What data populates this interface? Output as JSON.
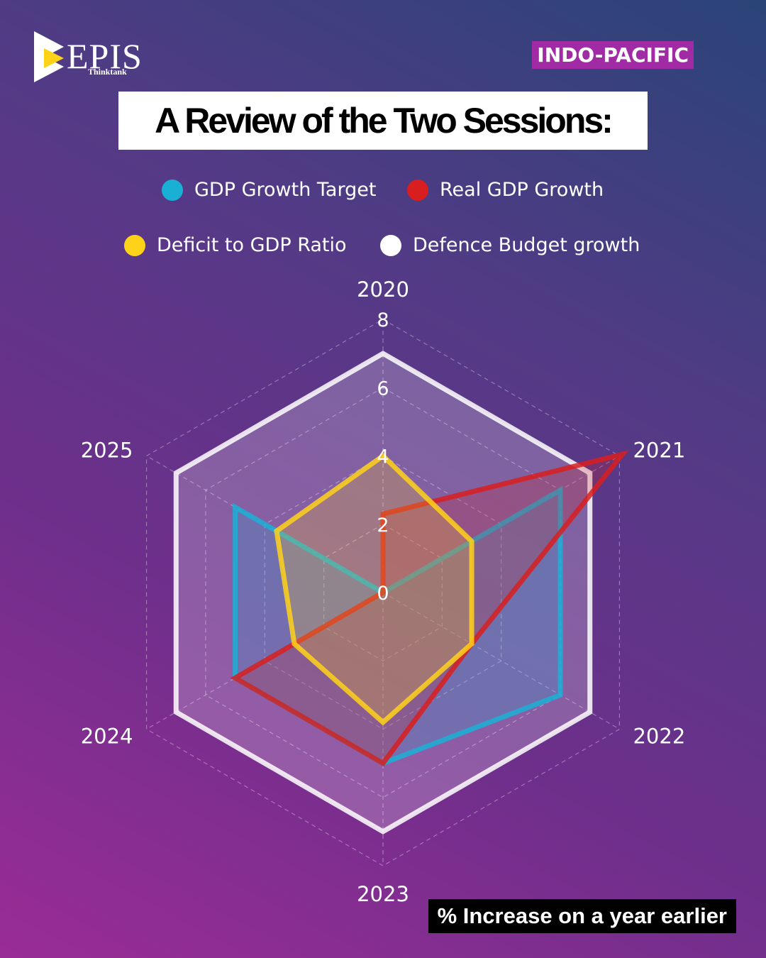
{
  "brand": {
    "name": "EPIS",
    "sub": "Thinktank"
  },
  "tag": "INDO-PACIFIC",
  "title": "A Review of the Two Sessions:",
  "footnote": "% Increase on a year earlier",
  "colors": {
    "gdp_target": "#1ab0d6",
    "real_gdp": "#d81e1e",
    "deficit": "#ffd21a",
    "defence": "#ffffff"
  },
  "chart_data": {
    "type": "radar",
    "categories": [
      "2020",
      "2021",
      "2022",
      "2023",
      "2024",
      "2025"
    ],
    "ticks": [
      "0",
      "2",
      "4",
      "6",
      "8"
    ],
    "rlim": [
      0,
      8
    ],
    "grid": true,
    "series": [
      {
        "name": "Defence Budget growth",
        "color": "#ffffff",
        "values": [
          7.0,
          7.0,
          7.0,
          7.0,
          7.0,
          7.0
        ]
      },
      {
        "name": "GDP Growth Target",
        "color": "#1ab0d6",
        "values": [
          0,
          6.0,
          6.0,
          5.0,
          5.0,
          5.0
        ]
      },
      {
        "name": "Real GDP Growth",
        "color": "#d81e1e",
        "values": [
          2.3,
          8.1,
          3.0,
          5.0,
          5.0,
          0
        ]
      },
      {
        "name": "Deficit to GDP Ratio",
        "color": "#ffd21a",
        "values": [
          4.0,
          3.0,
          3.0,
          3.8,
          3.0,
          3.6
        ]
      }
    ],
    "legend": "top"
  }
}
